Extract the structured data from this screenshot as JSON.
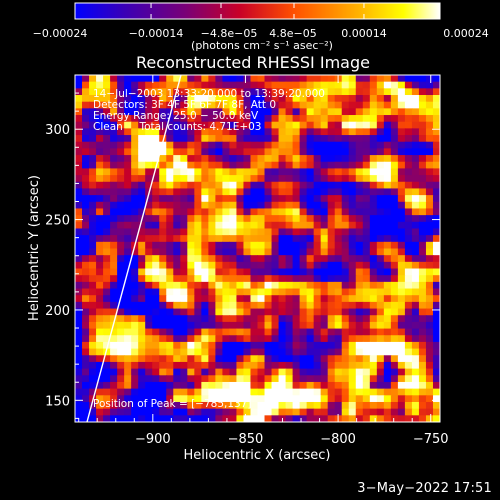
{
  "chart_data": {
    "type": "heatmap",
    "title": "Reconstructed RHESSI Image",
    "xlabel": "Heliocentric X (arcsec)",
    "ylabel": "Heliocentric Y (arcsec)",
    "xlim": [
      -942,
      -745
    ],
    "ylim": [
      138,
      330
    ],
    "x_ticks": [
      -900,
      -850,
      -800,
      -750
    ],
    "x_tick_labels": [
      "−900",
      "−850",
      "−800",
      "−750"
    ],
    "y_ticks": [
      150,
      200,
      250,
      300
    ],
    "y_tick_labels": [
      "150",
      "200",
      "250",
      "300"
    ],
    "colorbar": {
      "range": [
        -0.00024,
        0.00024
      ],
      "colormap": "blue-purple-red-orange-yellow-white",
      "ticks": [
        -0.00024,
        -0.00014,
        -4.8e-05,
        4.8e-05,
        0.00014,
        0.00024
      ],
      "top_tick_labels": [
        "−4.8e−05",
        "4.8e−05"
      ],
      "bottom_tick_labels": [
        "−0.00024",
        "−0.00014",
        "0.00014",
        "0.00024"
      ],
      "label": "(photons cm⁻² s⁻¹ asec⁻²)"
    },
    "annotations": [
      "14−Jul−2003 13:33:20.000 to 13:39:20.000",
      "Detectors: 3F 4F 5F 6F 7F 8F, Att 0",
      "Energy Range: 25.0 − 50.0 keV",
      "Clean     Total counts: 4.71E+03"
    ],
    "peak_label": "Position of Peak = [−785,137]",
    "peak_position": [
      -785,
      137
    ],
    "limb_line": true
  },
  "footer": {
    "timestamp": "3−May−2022 17:51"
  },
  "colors": {
    "background": "#000000",
    "text": "#ffffff",
    "colormap_stops": [
      "#0000ff",
      "#3c00b4",
      "#780078",
      "#c80028",
      "#ff5000",
      "#ffb400",
      "#ffff00",
      "#ffffff"
    ]
  }
}
